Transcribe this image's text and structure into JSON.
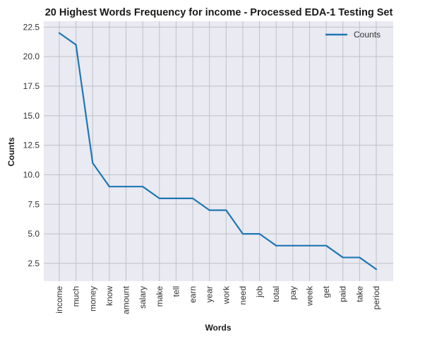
{
  "chart_data": {
    "type": "line",
    "title": "20 Highest Words Frequency for income - Processed EDA-1 Testing Set",
    "xlabel": "Words",
    "ylabel": "Counts",
    "categories": [
      "income",
      "much",
      "money",
      "know",
      "amount",
      "salary",
      "make",
      "tell",
      "earn",
      "year",
      "work",
      "need",
      "job",
      "total",
      "pay",
      "week",
      "get",
      "paid",
      "take",
      "period"
    ],
    "series": [
      {
        "name": "Counts",
        "values": [
          22,
          21,
          11,
          9,
          9,
          9,
          8,
          8,
          8,
          7,
          7,
          5,
          5,
          4,
          4,
          4,
          4,
          3,
          3,
          2
        ],
        "color": "#1f77b4"
      }
    ],
    "ylim": [
      1.0,
      23.0
    ],
    "yticks": [
      "2.5",
      "5.0",
      "7.5",
      "10.0",
      "12.5",
      "15.0",
      "17.5",
      "20.0",
      "22.5"
    ],
    "grid": true,
    "legend_position": "top-right",
    "background": "#eaeaf2",
    "grid_color": "#c0c0c8"
  }
}
